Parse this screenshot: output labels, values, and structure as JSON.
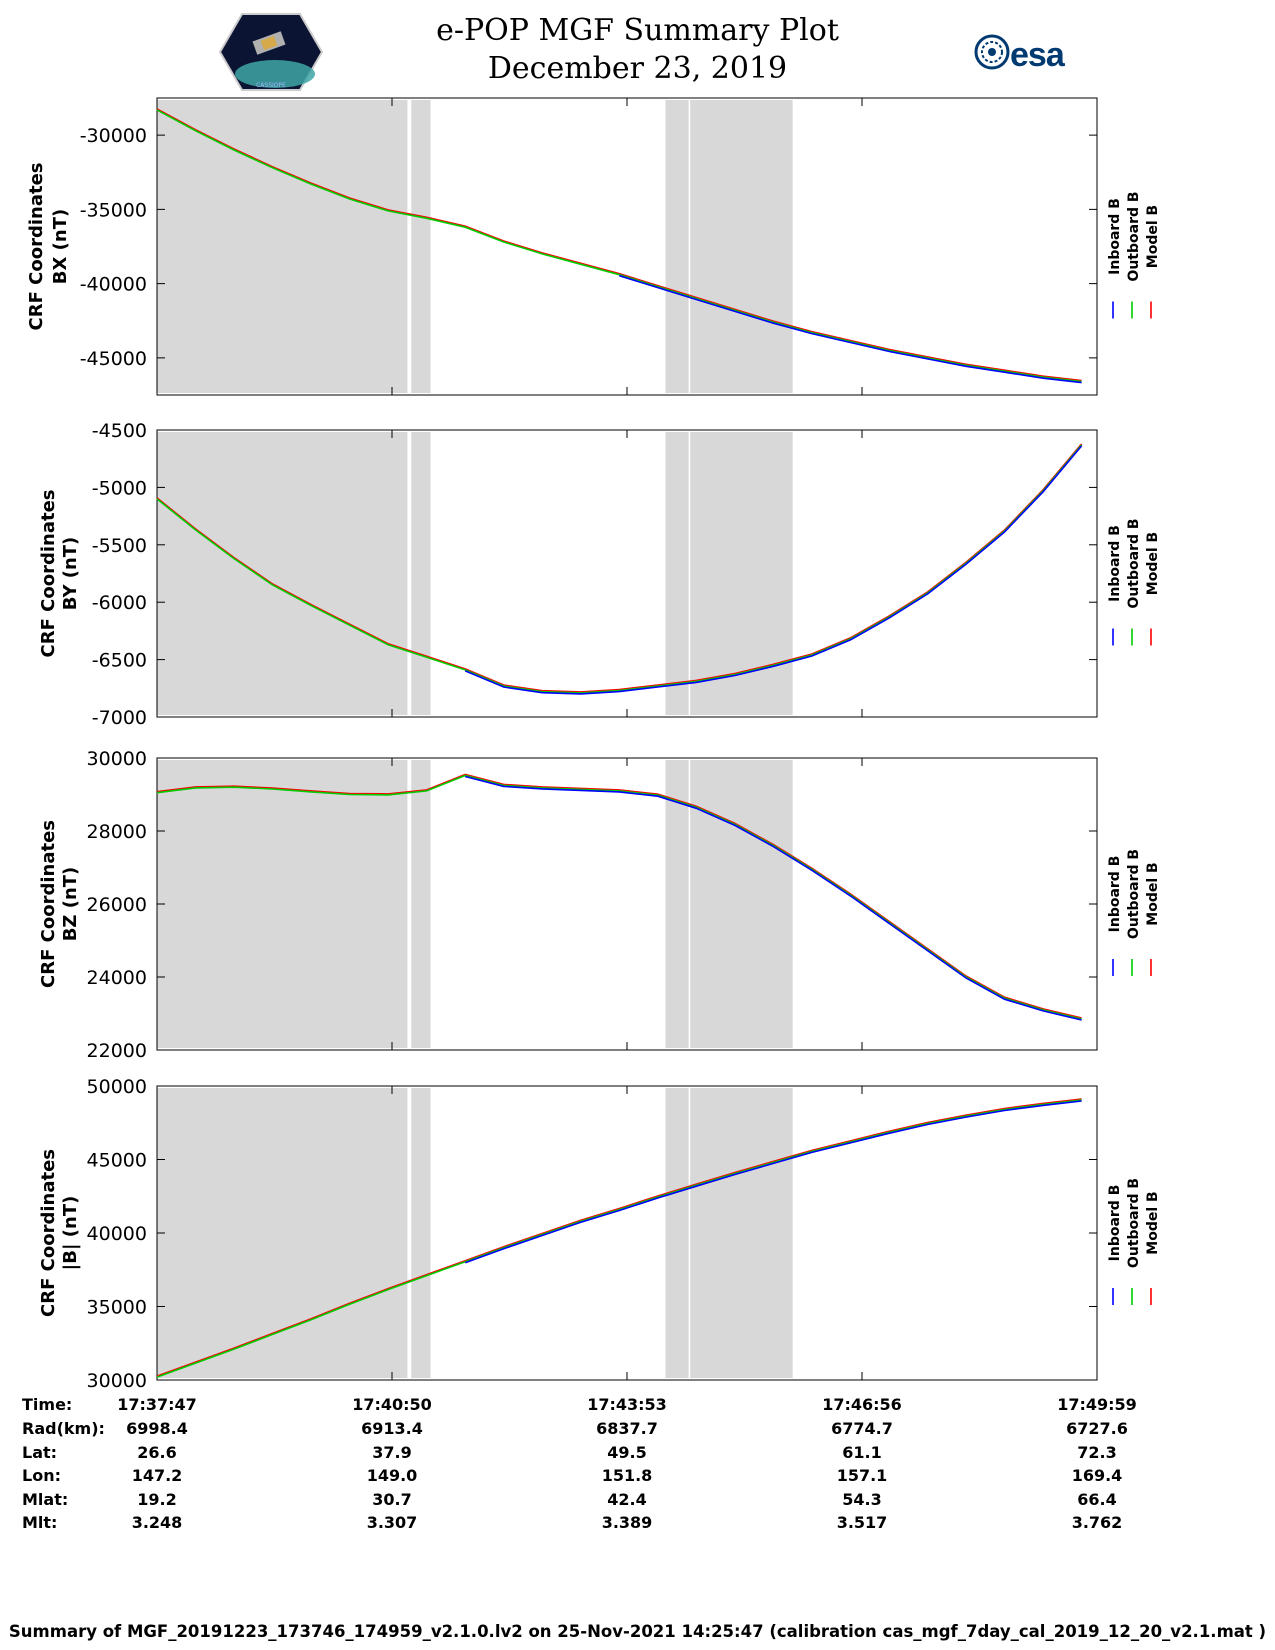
{
  "header": {
    "title_line1": "e-POP MGF Summary Plot",
    "title_line2": "December 23, 2019",
    "right_logo_text": "esa",
    "left_logo_caption": "CASSIOPE"
  },
  "legend": [
    "Inboard B",
    "Outboard B",
    "Model B"
  ],
  "colors": {
    "inboard": "#0000ff",
    "outboard": "#00cc00",
    "model": "#ff0000",
    "shade": "#d8d8d8"
  },
  "chart_data": [
    {
      "type": "line",
      "ylabel_line1": "CRF Coordinates",
      "ylabel_line2": "BX (nT)",
      "ylim": [
        -47500,
        -27500
      ],
      "yticks": [
        -30000,
        -35000,
        -40000,
        -45000
      ],
      "yticklabels": [
        "-30000",
        "-35000",
        "-40000",
        "-45000"
      ],
      "x": [
        0,
        0.5,
        1,
        1.5,
        2,
        2.5,
        3,
        3.5,
        4,
        4.5,
        5,
        5.5,
        6,
        6.5,
        7,
        7.5,
        8,
        8.5,
        9,
        9.5,
        10,
        10.5,
        11,
        11.5,
        12
      ],
      "series": [
        {
          "name": "Model B",
          "values": [
            -28300,
            -29700,
            -31000,
            -32200,
            -33300,
            -34300,
            -35100,
            -35600,
            -36200,
            -37200,
            -38000,
            -38700,
            -39400,
            -40200,
            -41000,
            -41800,
            -42600,
            -43300,
            -43900,
            -44500,
            -45000,
            -45500,
            -45900,
            -46300,
            -46600
          ]
        },
        {
          "name": "Outboard B",
          "values": [
            -28300,
            -29700,
            -31000,
            -32200,
            -33300,
            -34300,
            -35100,
            -35600,
            -36200,
            -37200,
            -38000,
            -38700,
            -39400,
            -40200,
            -41000,
            -41800,
            -42600,
            -43300,
            -43900,
            -44500,
            -45000,
            -45500,
            -45900,
            -46300,
            -46600
          ]
        },
        {
          "name": "Inboard B",
          "values": [
            null,
            null,
            null,
            null,
            null,
            null,
            null,
            null,
            null,
            null,
            null,
            null,
            -39400,
            -40200,
            -41000,
            -41800,
            -42600,
            -43300,
            -43900,
            -44500,
            -45000,
            -45500,
            -45900,
            -46300,
            -46600
          ]
        }
      ]
    },
    {
      "type": "line",
      "ylabel_line1": "CRF Coordinates",
      "ylabel_line2": "BY (nT)",
      "ylim": [
        -7000,
        -4500
      ],
      "yticks": [
        -4500,
        -5000,
        -5500,
        -6000,
        -6500,
        -7000
      ],
      "yticklabels": [
        "-4500",
        "-5000",
        "-5500",
        "-6000",
        "-6500",
        "-7000"
      ],
      "x": [
        0,
        0.5,
        1,
        1.5,
        2,
        2.5,
        3,
        3.5,
        4,
        4.5,
        5,
        5.5,
        6,
        6.5,
        7,
        7.5,
        8,
        8.5,
        9,
        9.5,
        10,
        10.5,
        11,
        11.5,
        12
      ],
      "series": [
        {
          "name": "Model B",
          "values": [
            -5100,
            -5370,
            -5620,
            -5850,
            -6030,
            -6200,
            -6370,
            -6480,
            -6590,
            -6730,
            -6780,
            -6790,
            -6770,
            -6730,
            -6690,
            -6630,
            -6550,
            -6460,
            -6320,
            -6130,
            -5920,
            -5660,
            -5380,
            -5030,
            -4630
          ]
        },
        {
          "name": "Outboard B",
          "values": [
            -5100,
            -5370,
            -5620,
            -5850,
            -6030,
            -6200,
            -6370,
            -6480,
            -6590,
            -6730,
            -6780,
            -6790,
            -6770,
            -6730,
            -6690,
            -6630,
            -6550,
            -6460,
            -6320,
            -6130,
            -5920,
            -5660,
            -5380,
            -5030,
            -4630
          ]
        },
        {
          "name": "Inboard B",
          "values": [
            null,
            null,
            null,
            null,
            null,
            null,
            null,
            null,
            -6590,
            -6730,
            -6780,
            -6790,
            -6770,
            -6730,
            -6690,
            -6630,
            -6550,
            -6460,
            -6320,
            -6130,
            -5920,
            -5660,
            -5380,
            -5030,
            -4630
          ]
        }
      ]
    },
    {
      "type": "line",
      "ylabel_line1": "CRF Coordinates",
      "ylabel_line2": "BZ (nT)",
      "ylim": [
        22000,
        30000
      ],
      "yticks": [
        30000,
        28000,
        26000,
        24000,
        22000
      ],
      "yticklabels": [
        "30000",
        "28000",
        "26000",
        "24000",
        "22000"
      ],
      "x": [
        0,
        0.5,
        1,
        1.5,
        2,
        2.5,
        3,
        3.5,
        4,
        4.5,
        5,
        5.5,
        6,
        6.5,
        7,
        7.5,
        8,
        8.5,
        9,
        9.5,
        10,
        10.5,
        11,
        11.5,
        12
      ],
      "series": [
        {
          "name": "Model B",
          "values": [
            29050,
            29180,
            29200,
            29150,
            29070,
            29000,
            28990,
            29100,
            29520,
            29250,
            29180,
            29140,
            29100,
            28980,
            28650,
            28180,
            27600,
            26950,
            26250,
            25500,
            24750,
            24000,
            23420,
            23100,
            22850
          ]
        },
        {
          "name": "Outboard B",
          "values": [
            29050,
            29180,
            29200,
            29150,
            29070,
            29000,
            28990,
            29100,
            29520,
            29250,
            29180,
            29140,
            29100,
            28980,
            28650,
            28180,
            27600,
            26950,
            26250,
            25500,
            24750,
            24000,
            23420,
            23100,
            22850
          ]
        },
        {
          "name": "Inboard B",
          "values": [
            null,
            null,
            null,
            null,
            null,
            null,
            null,
            null,
            29520,
            29250,
            29180,
            29140,
            29100,
            28980,
            28650,
            28180,
            27600,
            26950,
            26250,
            25500,
            24750,
            24000,
            23420,
            23100,
            22850
          ]
        }
      ]
    },
    {
      "type": "line",
      "ylabel_line1": "CRF Coordinates",
      "ylabel_line2": "|B| (nT)",
      "ylim": [
        30000,
        50000
      ],
      "yticks": [
        50000,
        45000,
        40000,
        35000,
        30000
      ],
      "yticklabels": [
        "50000",
        "45000",
        "40000",
        "35000",
        "30000"
      ],
      "x": [
        0,
        0.5,
        1,
        1.5,
        2,
        2.5,
        3,
        3.5,
        4,
        4.5,
        5,
        5.5,
        6,
        6.5,
        7,
        7.5,
        8,
        8.5,
        9,
        9.5,
        10,
        10.5,
        11,
        11.5,
        12
      ],
      "series": [
        {
          "name": "Model B",
          "values": [
            30200,
            31150,
            32100,
            33100,
            34100,
            35150,
            36150,
            37100,
            38050,
            39000,
            39900,
            40800,
            41600,
            42450,
            43250,
            44050,
            44800,
            45550,
            46200,
            46850,
            47450,
            47950,
            48400,
            48750,
            49050
          ]
        },
        {
          "name": "Outboard B",
          "values": [
            30200,
            31150,
            32100,
            33100,
            34100,
            35150,
            36150,
            37100,
            38050,
            39000,
            39900,
            40800,
            41600,
            42450,
            43250,
            44050,
            44800,
            45550,
            46200,
            46850,
            47450,
            47950,
            48400,
            48750,
            49050
          ]
        },
        {
          "name": "Inboard B",
          "values": [
            null,
            null,
            null,
            null,
            null,
            null,
            null,
            null,
            38050,
            39000,
            39900,
            40800,
            41600,
            42450,
            43250,
            44050,
            44800,
            45550,
            46200,
            46850,
            47450,
            47950,
            48400,
            48750,
            49050
          ]
        }
      ]
    }
  ],
  "shaded_intervals_minutes": [
    [
      0,
      3.25
    ],
    [
      3.3,
      3.55
    ],
    [
      6.6,
      6.9
    ],
    [
      6.92,
      8.25
    ]
  ],
  "x_range_minutes": [
    0,
    12.2
  ],
  "ephemeris": {
    "row_labels": [
      "Time:",
      "Rad(km):",
      "Lat:",
      "Lon:",
      "Mlat:",
      "Mlt:"
    ],
    "columns": [
      [
        "17:37:47",
        "6998.4",
        "26.6",
        "147.2",
        "19.2",
        "3.248"
      ],
      [
        "17:40:50",
        "6913.4",
        "37.9",
        "149.0",
        "30.7",
        "3.307"
      ],
      [
        "17:43:53",
        "6837.7",
        "49.5",
        "151.8",
        "42.4",
        "3.389"
      ],
      [
        "17:46:56",
        "6774.7",
        "61.1",
        "157.1",
        "54.3",
        "3.517"
      ],
      [
        "17:49:59",
        "6727.6",
        "72.3",
        "169.4",
        "66.4",
        "3.762"
      ]
    ]
  },
  "summary_line": "Summary of MGF_20191223_173746_174959_v2.1.0.lv2 on 25-Nov-2021 14:25:47 (calibration cas_mgf_7day_cal_2019_12_20_v2.1.mat )"
}
